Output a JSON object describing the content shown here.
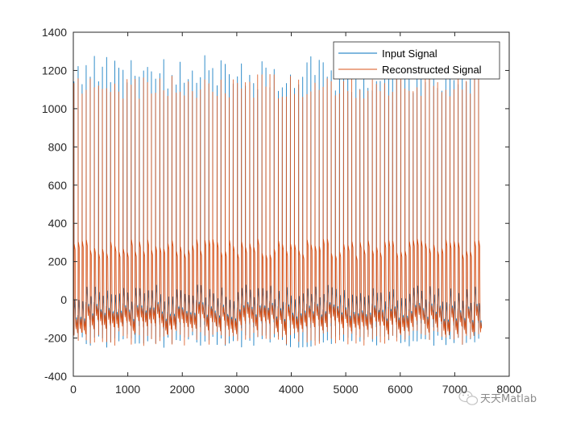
{
  "chart_data": {
    "type": "line",
    "title": "",
    "xlabel": "",
    "ylabel": "",
    "xlim": [
      0,
      8000
    ],
    "ylim": [
      -400,
      1400
    ],
    "x_ticks": [
      0,
      1000,
      2000,
      3000,
      4000,
      5000,
      6000,
      7000,
      8000
    ],
    "y_ticks": [
      -400,
      -200,
      0,
      200,
      400,
      600,
      800,
      1000,
      1200,
      1400
    ],
    "x_tick_labels": [
      "0",
      "1000",
      "2000",
      "3000",
      "4000",
      "5000",
      "6000",
      "7000",
      "8000"
    ],
    "y_tick_labels": [
      "-400",
      "-200",
      "0",
      "200",
      "400",
      "600",
      "800",
      "1000",
      "1200",
      "1400"
    ],
    "grid": false,
    "legend_position": "top-right",
    "n_samples": 7500,
    "approx_beat_period_samples": 75,
    "series": [
      {
        "name": "Input Signal",
        "color": "#0072BD",
        "approx_peak_range": [
          1080,
          1280
        ],
        "approx_trough_range": [
          -250,
          -180
        ],
        "approx_baseline_range": [
          -100,
          0
        ]
      },
      {
        "name": "Reconstructed Signal",
        "color": "#D95319",
        "approx_peak_range": [
          1050,
          1180
        ],
        "approx_trough_range": [
          -240,
          -160
        ],
        "approx_plateau_range": [
          230,
          320
        ],
        "approx_baseline_range": [
          -100,
          0
        ]
      }
    ]
  },
  "legend": {
    "items": [
      {
        "label": "Input Signal",
        "color": "#0072BD"
      },
      {
        "label": "Reconstructed Signal",
        "color": "#D95319"
      }
    ]
  },
  "watermark": {
    "text": "天天Matlab",
    "icon": "wechat-icon"
  }
}
